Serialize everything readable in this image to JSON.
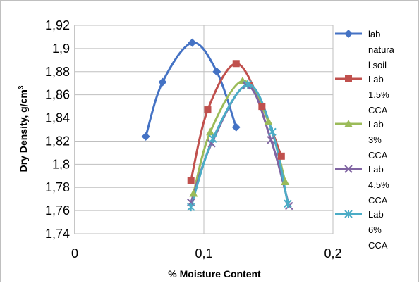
{
  "chart_data": {
    "type": "scatter",
    "title": "",
    "xlabel": "% Moisture Content",
    "ylabel": "Dry Density, g/cm",
    "ylabel_superscript": "3",
    "xlim": [
      0,
      0.2
    ],
    "ylim": [
      1.74,
      1.92
    ],
    "x_ticks": [
      0,
      0.1,
      0.2
    ],
    "x_tick_labels": [
      "0",
      "0,1",
      "0,2"
    ],
    "y_ticks": [
      1.74,
      1.76,
      1.78,
      1.8,
      1.82,
      1.84,
      1.86,
      1.88,
      1.9,
      1.92
    ],
    "y_tick_labels": [
      "1,74",
      "1,76",
      "1,78",
      "1,8",
      "1,82",
      "1,84",
      "1,86",
      "1,88",
      "1,9",
      "1,92"
    ],
    "grid": "horizontal and vertical major gridlines",
    "legend_position": "right",
    "smoothed_lines": true,
    "series": [
      {
        "name": "lab natural soil",
        "legend_lines": [
          "lab",
          "natura",
          "l soil"
        ],
        "color": "#4472C4",
        "marker": "diamond",
        "x": [
          0.055,
          0.068,
          0.091,
          0.11,
          0.125
        ],
        "y": [
          1.824,
          1.871,
          1.905,
          1.88,
          1.832
        ]
      },
      {
        "name": "Lab 1.5% CCA",
        "legend_lines": [
          "Lab",
          "1.5%",
          "CCA"
        ],
        "color": "#C0504D",
        "marker": "square",
        "x": [
          0.09,
          0.103,
          0.125,
          0.145,
          0.16
        ],
        "y": [
          1.786,
          1.847,
          1.887,
          1.85,
          1.807
        ]
      },
      {
        "name": "Lab 3% CCA",
        "legend_lines": [
          "Lab",
          "3%",
          "CCA"
        ],
        "color": "#9BBB59",
        "marker": "triangle",
        "x": [
          0.092,
          0.105,
          0.13,
          0.15,
          0.163
        ],
        "y": [
          1.775,
          1.828,
          1.872,
          1.837,
          1.785
        ]
      },
      {
        "name": "Lab 4.5% CCA",
        "legend_lines": [
          "Lab",
          "4.5%",
          "CCA"
        ],
        "color": "#8064A2",
        "marker": "x",
        "x": [
          0.09,
          0.106,
          0.133,
          0.152,
          0.166
        ],
        "y": [
          1.767,
          1.818,
          1.868,
          1.821,
          1.764
        ]
      },
      {
        "name": "Lab 6% CCA",
        "legend_lines": [
          "Lab",
          "6%",
          "CCA"
        ],
        "color": "#4BACC6",
        "marker": "star",
        "x": [
          0.09,
          0.107,
          0.134,
          0.153,
          0.165
        ],
        "y": [
          1.763,
          1.822,
          1.869,
          1.828,
          1.766
        ]
      }
    ]
  }
}
